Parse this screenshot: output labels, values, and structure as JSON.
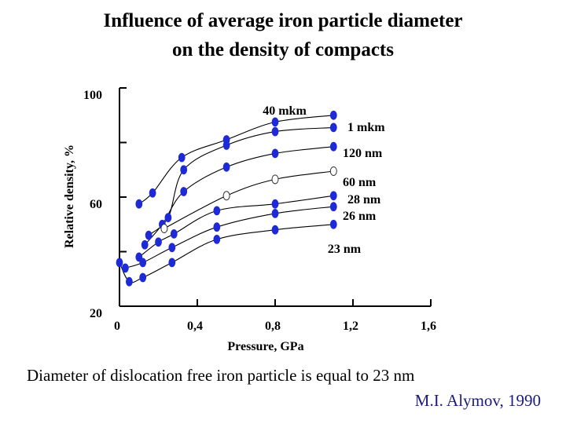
{
  "chart_data": {
    "type": "line",
    "title": [
      "Influence of average iron particle diameter",
      "on the density of compacts"
    ],
    "xlabel": "Pressure, GPa",
    "ylabel": "Relative density, %",
    "xlim": [
      0,
      1.6
    ],
    "ylim": [
      20,
      100
    ],
    "x_ticks": [
      {
        "value": 0,
        "label": "0"
      },
      {
        "value": 0.4,
        "label": "0,4"
      },
      {
        "value": 0.8,
        "label": "0,8"
      },
      {
        "value": 1.2,
        "label": "1,2"
      },
      {
        "value": 1.6,
        "label": "1,6"
      }
    ],
    "y_ticks": [
      {
        "value": 100,
        "label": "100"
      },
      {
        "value": 80,
        "label": ""
      },
      {
        "value": 60,
        "label": "60"
      },
      {
        "value": 40,
        "label": ""
      },
      {
        "value": 20,
        "label": "20"
      }
    ],
    "series": [
      {
        "name": "40 mkm",
        "marker": "filled",
        "x": [
          0.1,
          0.17,
          0.32,
          0.55,
          0.8,
          1.1
        ],
        "y": [
          57.5,
          61.5,
          74.5,
          81.0,
          87.5,
          90.0
        ]
      },
      {
        "name": "1 mkm",
        "marker": "filled",
        "x": [
          0.15,
          0.25,
          0.33,
          0.55,
          0.8,
          1.1
        ],
        "y": [
          46.0,
          52.5,
          70.0,
          79.0,
          84.0,
          85.5
        ]
      },
      {
        "name": "120 nm",
        "marker": "filled",
        "x": [
          0.13,
          0.22,
          0.33,
          0.55,
          0.8,
          1.1
        ],
        "y": [
          42.5,
          50.0,
          62.0,
          71.0,
          76.0,
          78.5
        ]
      },
      {
        "name": "60 nm",
        "marker": "open",
        "x": [
          0.23,
          0.55,
          0.8,
          1.1
        ],
        "y": [
          48.5,
          60.5,
          66.5,
          69.5
        ]
      },
      {
        "name": "28 nm",
        "marker": "filled",
        "x": [
          0.1,
          0.2,
          0.28,
          0.5,
          0.8,
          1.1
        ],
        "y": [
          38.0,
          43.5,
          46.5,
          55.0,
          57.5,
          60.5
        ]
      },
      {
        "name": "26 nm",
        "marker": "filled",
        "x": [
          0.03,
          0.12,
          0.27,
          0.5,
          0.8,
          1.1
        ],
        "y": [
          34.0,
          36.0,
          41.5,
          49.0,
          54.0,
          56.5
        ]
      },
      {
        "name": "23 nm",
        "marker": "filled",
        "x": [
          0.0,
          0.05,
          0.12,
          0.27,
          0.5,
          0.8,
          1.1
        ],
        "y": [
          36.0,
          29.0,
          30.5,
          36.0,
          44.5,
          48.0,
          50.0
        ]
      }
    ]
  },
  "footer": {
    "note": "Diameter of dislocation free iron particle is equal to 23 nm",
    "credit": "M.I. Alymov, 1990"
  },
  "colors": {
    "marker": "#1e2ad6",
    "marker_open_stroke": "#333333",
    "line": "#000000"
  }
}
